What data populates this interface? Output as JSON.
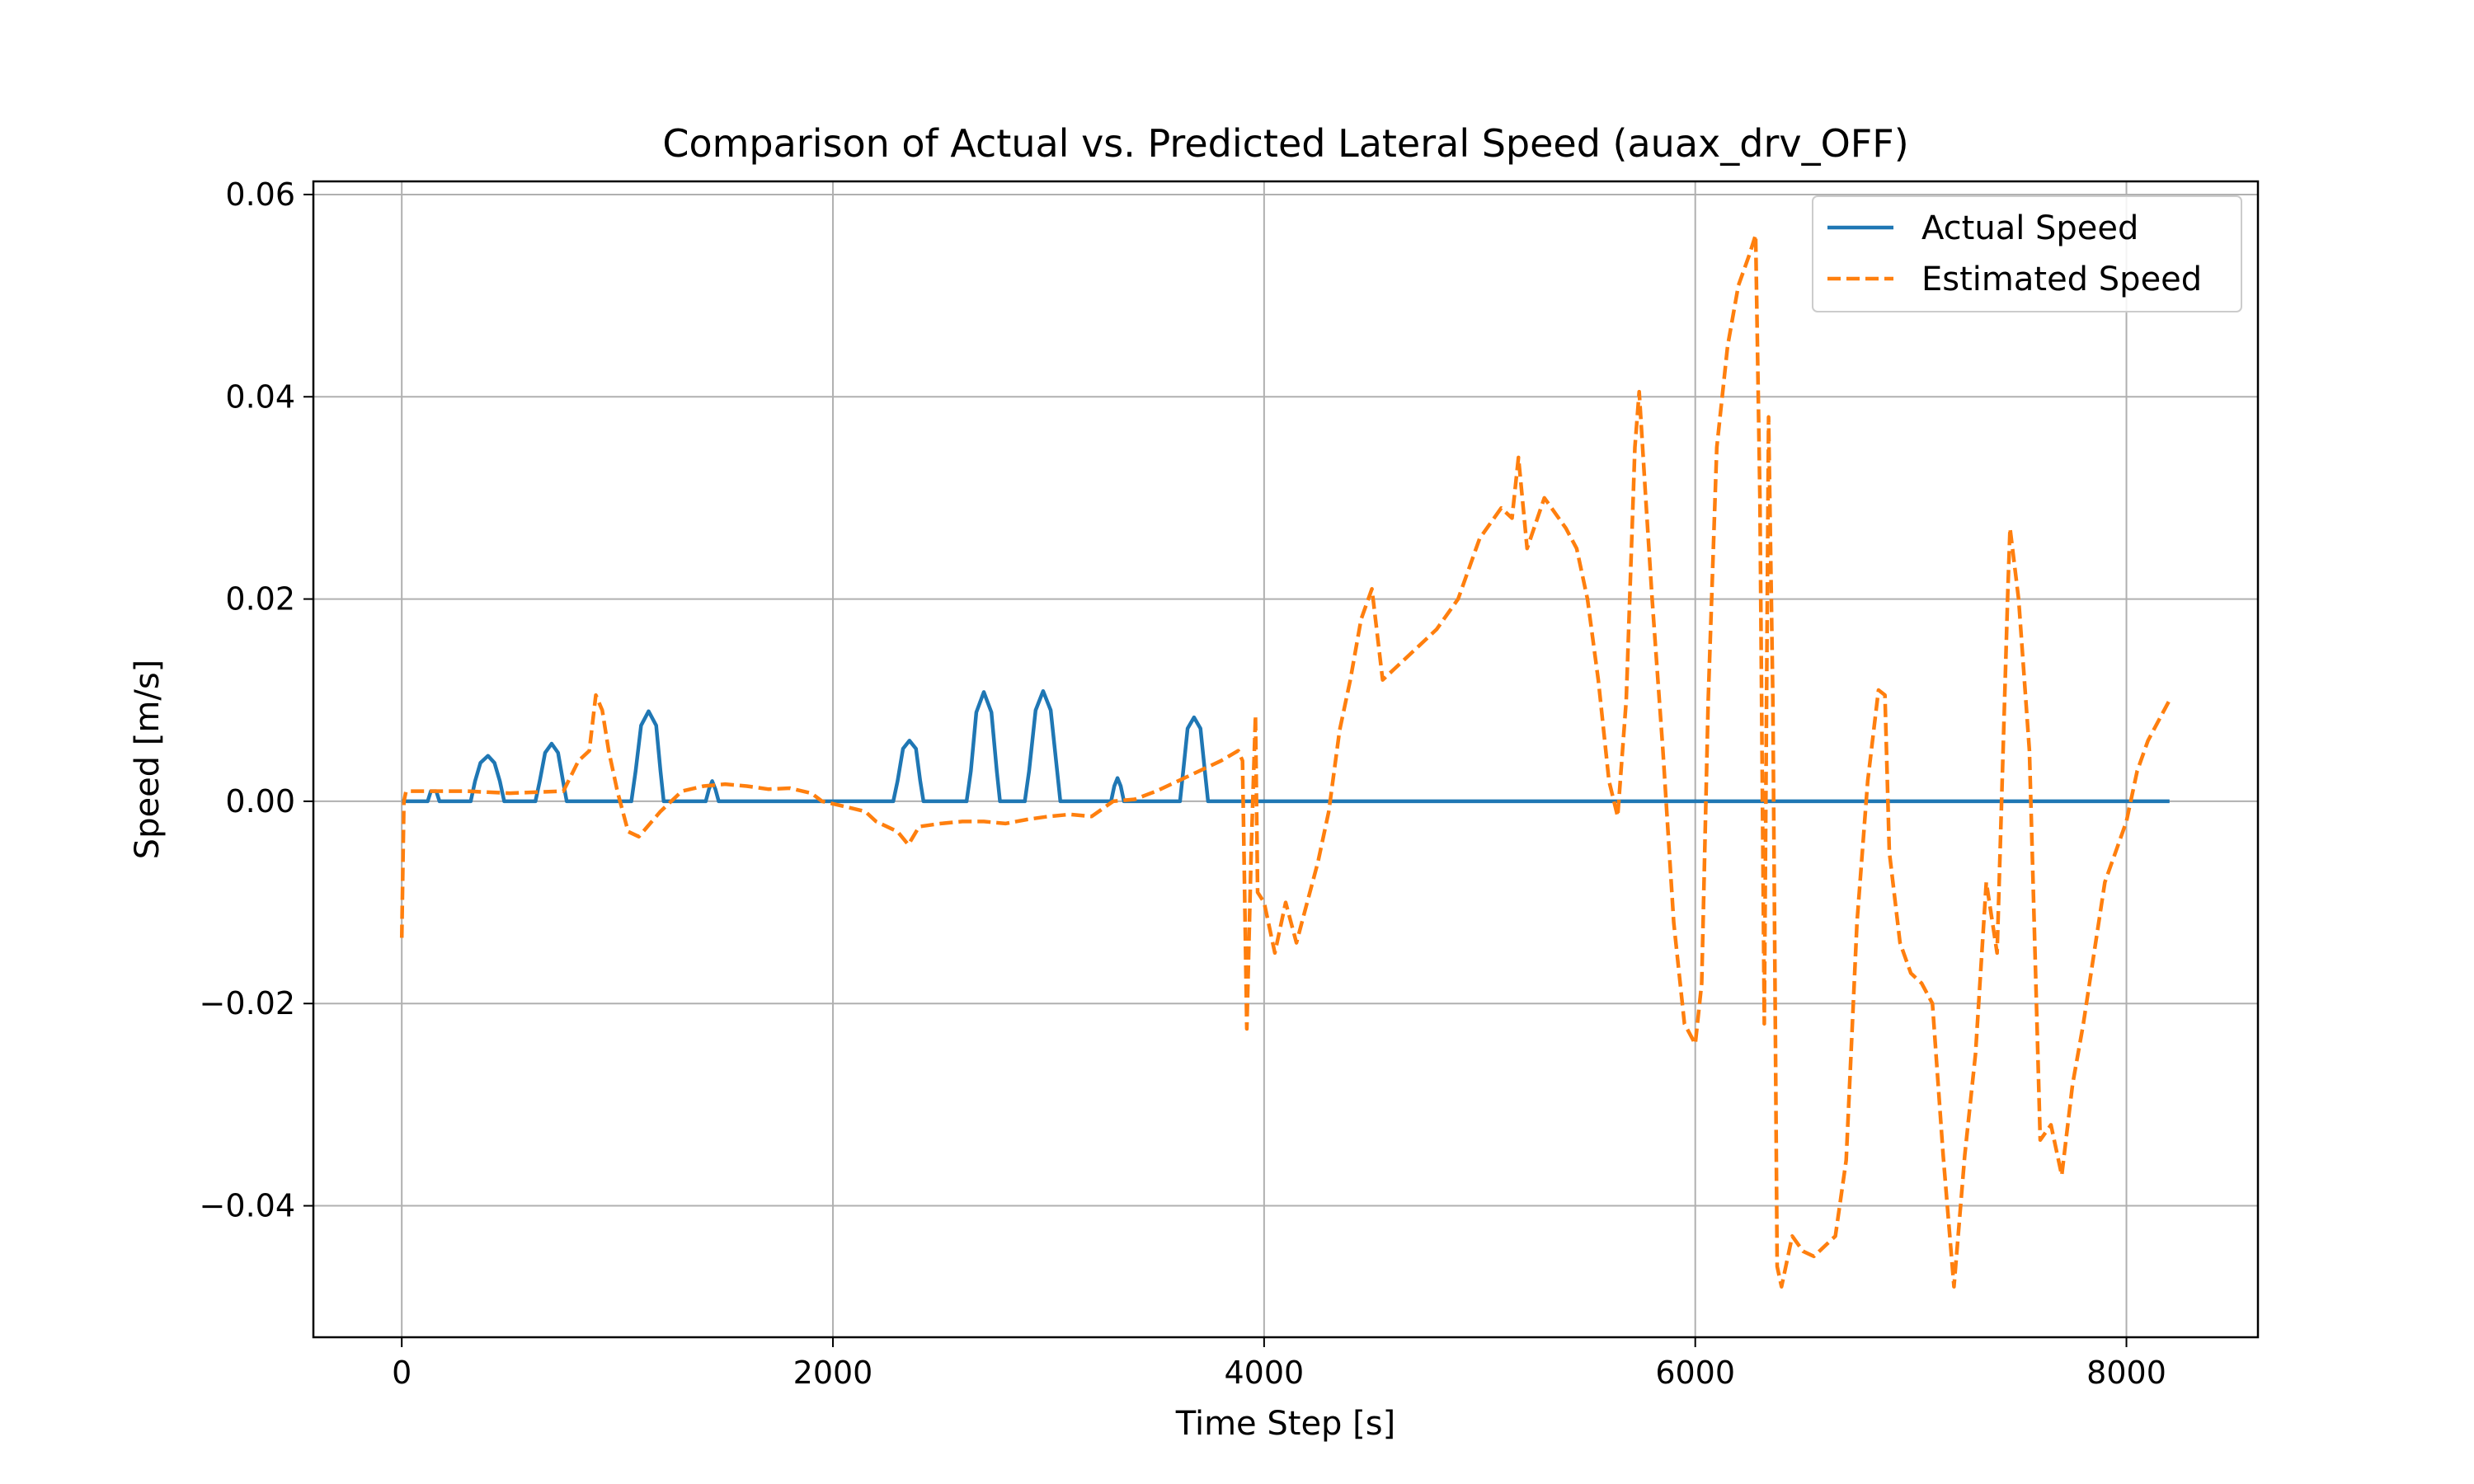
{
  "chart_data": {
    "type": "line",
    "title": "Comparison of Actual vs. Predicted Lateral Speed (auax_drv_OFF)",
    "xlabel": "Time Step [s]",
    "ylabel": "Speed [m/s]",
    "xlim": [
      -410,
      8610
    ],
    "ylim": [
      -0.053,
      0.0613
    ],
    "xticks": [
      0,
      2000,
      4000,
      6000,
      8000
    ],
    "xtick_labels": [
      "0",
      "2000",
      "4000",
      "6000",
      "8000"
    ],
    "yticks": [
      -0.04,
      -0.02,
      0.0,
      0.02,
      0.04,
      0.06
    ],
    "ytick_labels": [
      "−0.04",
      "−0.02",
      "0.00",
      "0.02",
      "0.04",
      "0.06"
    ],
    "grid": true,
    "legend_position": "top-right",
    "series": [
      {
        "name": "Actual Speed",
        "color": "#1f77b4",
        "style": "solid",
        "points": [
          [
            0,
            0
          ],
          [
            120,
            0
          ],
          [
            135,
            0.001
          ],
          [
            160,
            0.001
          ],
          [
            175,
            0
          ],
          [
            320,
            0
          ],
          [
            340,
            0.002
          ],
          [
            365,
            0.0038
          ],
          [
            400,
            0.0045
          ],
          [
            430,
            0.0038
          ],
          [
            455,
            0.002
          ],
          [
            475,
            0
          ],
          [
            620,
            0
          ],
          [
            640,
            0.002
          ],
          [
            665,
            0.0048
          ],
          [
            695,
            0.0057
          ],
          [
            725,
            0.0048
          ],
          [
            748,
            0.002
          ],
          [
            765,
            0
          ],
          [
            1065,
            0
          ],
          [
            1085,
            0.003
          ],
          [
            1110,
            0.0075
          ],
          [
            1145,
            0.0089
          ],
          [
            1180,
            0.0075
          ],
          [
            1200,
            0.003
          ],
          [
            1215,
            0
          ],
          [
            1410,
            0
          ],
          [
            1425,
            0.0012
          ],
          [
            1440,
            0.002
          ],
          [
            1455,
            0.0012
          ],
          [
            1470,
            0
          ],
          [
            2280,
            0
          ],
          [
            2300,
            0.002
          ],
          [
            2325,
            0.0052
          ],
          [
            2355,
            0.006
          ],
          [
            2385,
            0.0052
          ],
          [
            2405,
            0.002
          ],
          [
            2420,
            0
          ],
          [
            2620,
            0
          ],
          [
            2640,
            0.003
          ],
          [
            2665,
            0.0088
          ],
          [
            2700,
            0.0108
          ],
          [
            2735,
            0.0088
          ],
          [
            2760,
            0.003
          ],
          [
            2775,
            0
          ],
          [
            2890,
            0
          ],
          [
            2910,
            0.003
          ],
          [
            2940,
            0.009
          ],
          [
            2975,
            0.0109
          ],
          [
            3010,
            0.009
          ],
          [
            3040,
            0.003
          ],
          [
            3055,
            0
          ],
          [
            3290,
            0
          ],
          [
            3305,
            0.0015
          ],
          [
            3320,
            0.0023
          ],
          [
            3335,
            0.0015
          ],
          [
            3350,
            0
          ],
          [
            3610,
            0
          ],
          [
            3625,
            0.003
          ],
          [
            3645,
            0.0072
          ],
          [
            3675,
            0.0083
          ],
          [
            3705,
            0.0072
          ],
          [
            3725,
            0.003
          ],
          [
            3740,
            0
          ],
          [
            8200,
            0
          ]
        ]
      },
      {
        "name": "Estimated Speed",
        "color": "#ff7f0e",
        "style": "dashed",
        "points": [
          [
            0,
            -0.0135
          ],
          [
            10,
            0
          ],
          [
            20,
            0.001
          ],
          [
            100,
            0.001
          ],
          [
            300,
            0.001
          ],
          [
            500,
            0.0008
          ],
          [
            750,
            0.001
          ],
          [
            820,
            0.004
          ],
          [
            870,
            0.005
          ],
          [
            900,
            0.0105
          ],
          [
            930,
            0.009
          ],
          [
            960,
            0.005
          ],
          [
            1000,
            0.001
          ],
          [
            1050,
            -0.003
          ],
          [
            1100,
            -0.0035
          ],
          [
            1200,
            -0.001
          ],
          [
            1300,
            0.001
          ],
          [
            1400,
            0.0015
          ],
          [
            1500,
            0.0017
          ],
          [
            1600,
            0.0015
          ],
          [
            1700,
            0.0012
          ],
          [
            1800,
            0.0013
          ],
          [
            1900,
            0.0008
          ],
          [
            1950,
            0
          ],
          [
            2050,
            -0.0005
          ],
          [
            2150,
            -0.001
          ],
          [
            2200,
            -0.002
          ],
          [
            2300,
            -0.003
          ],
          [
            2350,
            -0.0043
          ],
          [
            2400,
            -0.0025
          ],
          [
            2500,
            -0.0022
          ],
          [
            2600,
            -0.002
          ],
          [
            2700,
            -0.002
          ],
          [
            2800,
            -0.0022
          ],
          [
            2900,
            -0.0018
          ],
          [
            3000,
            -0.0015
          ],
          [
            3100,
            -0.0013
          ],
          [
            3200,
            -0.0015
          ],
          [
            3300,
            0
          ],
          [
            3400,
            0.0002
          ],
          [
            3500,
            0.001
          ],
          [
            3600,
            0.002
          ],
          [
            3700,
            0.003
          ],
          [
            3800,
            0.004
          ],
          [
            3880,
            0.005
          ],
          [
            3900,
            0.004
          ],
          [
            3920,
            -0.0225
          ],
          [
            3940,
            -0.005
          ],
          [
            3960,
            0.0085
          ],
          [
            3970,
            -0.009
          ],
          [
            4000,
            -0.01
          ],
          [
            4050,
            -0.015
          ],
          [
            4100,
            -0.01
          ],
          [
            4150,
            -0.014
          ],
          [
            4200,
            -0.01
          ],
          [
            4250,
            -0.006
          ],
          [
            4300,
            -0.001
          ],
          [
            4350,
            0.007
          ],
          [
            4400,
            0.012
          ],
          [
            4450,
            0.018
          ],
          [
            4500,
            0.021
          ],
          [
            4550,
            0.012
          ],
          [
            4600,
            0.013
          ],
          [
            4700,
            0.015
          ],
          [
            4800,
            0.017
          ],
          [
            4900,
            0.02
          ],
          [
            5000,
            0.026
          ],
          [
            5100,
            0.029
          ],
          [
            5150,
            0.028
          ],
          [
            5180,
            0.034
          ],
          [
            5220,
            0.025
          ],
          [
            5300,
            0.03
          ],
          [
            5400,
            0.027
          ],
          [
            5450,
            0.025
          ],
          [
            5500,
            0.02
          ],
          [
            5550,
            0.012
          ],
          [
            5600,
            0.002
          ],
          [
            5640,
            -0.0015
          ],
          [
            5680,
            0.01
          ],
          [
            5720,
            0.035
          ],
          [
            5740,
            0.0405
          ],
          [
            5770,
            0.03
          ],
          [
            5800,
            0.02
          ],
          [
            5850,
            0.005
          ],
          [
            5900,
            -0.012
          ],
          [
            5950,
            -0.022
          ],
          [
            6000,
            -0.024
          ],
          [
            6030,
            -0.018
          ],
          [
            6060,
            0.01
          ],
          [
            6100,
            0.035
          ],
          [
            6150,
            0.045
          ],
          [
            6200,
            0.051
          ],
          [
            6250,
            0.054
          ],
          [
            6280,
            0.056
          ],
          [
            6300,
            0.03
          ],
          [
            6320,
            -0.022
          ],
          [
            6340,
            0.038
          ],
          [
            6360,
            0.01
          ],
          [
            6380,
            -0.046
          ],
          [
            6400,
            -0.048
          ],
          [
            6450,
            -0.043
          ],
          [
            6500,
            -0.0445
          ],
          [
            6550,
            -0.045
          ],
          [
            6600,
            -0.044
          ],
          [
            6650,
            -0.043
          ],
          [
            6700,
            -0.0355
          ],
          [
            6750,
            -0.012
          ],
          [
            6800,
            0.002
          ],
          [
            6850,
            0.011
          ],
          [
            6880,
            0.0105
          ],
          [
            6900,
            -0.005
          ],
          [
            6950,
            -0.014
          ],
          [
            7000,
            -0.017
          ],
          [
            7050,
            -0.018
          ],
          [
            7100,
            -0.02
          ],
          [
            7150,
            -0.035
          ],
          [
            7200,
            -0.048
          ],
          [
            7250,
            -0.035
          ],
          [
            7300,
            -0.025
          ],
          [
            7350,
            -0.008
          ],
          [
            7400,
            -0.015
          ],
          [
            7450,
            0.021
          ],
          [
            7460,
            0.027
          ],
          [
            7500,
            0.02
          ],
          [
            7550,
            0.005
          ],
          [
            7600,
            -0.0335
          ],
          [
            7650,
            -0.032
          ],
          [
            7700,
            -0.037
          ],
          [
            7750,
            -0.028
          ],
          [
            7800,
            -0.022
          ],
          [
            7850,
            -0.015
          ],
          [
            7900,
            -0.008
          ],
          [
            7950,
            -0.005
          ],
          [
            8000,
            -0.002
          ],
          [
            8050,
            0.003
          ],
          [
            8100,
            0.006
          ],
          [
            8150,
            0.008
          ],
          [
            8200,
            0.01
          ]
        ]
      }
    ]
  }
}
